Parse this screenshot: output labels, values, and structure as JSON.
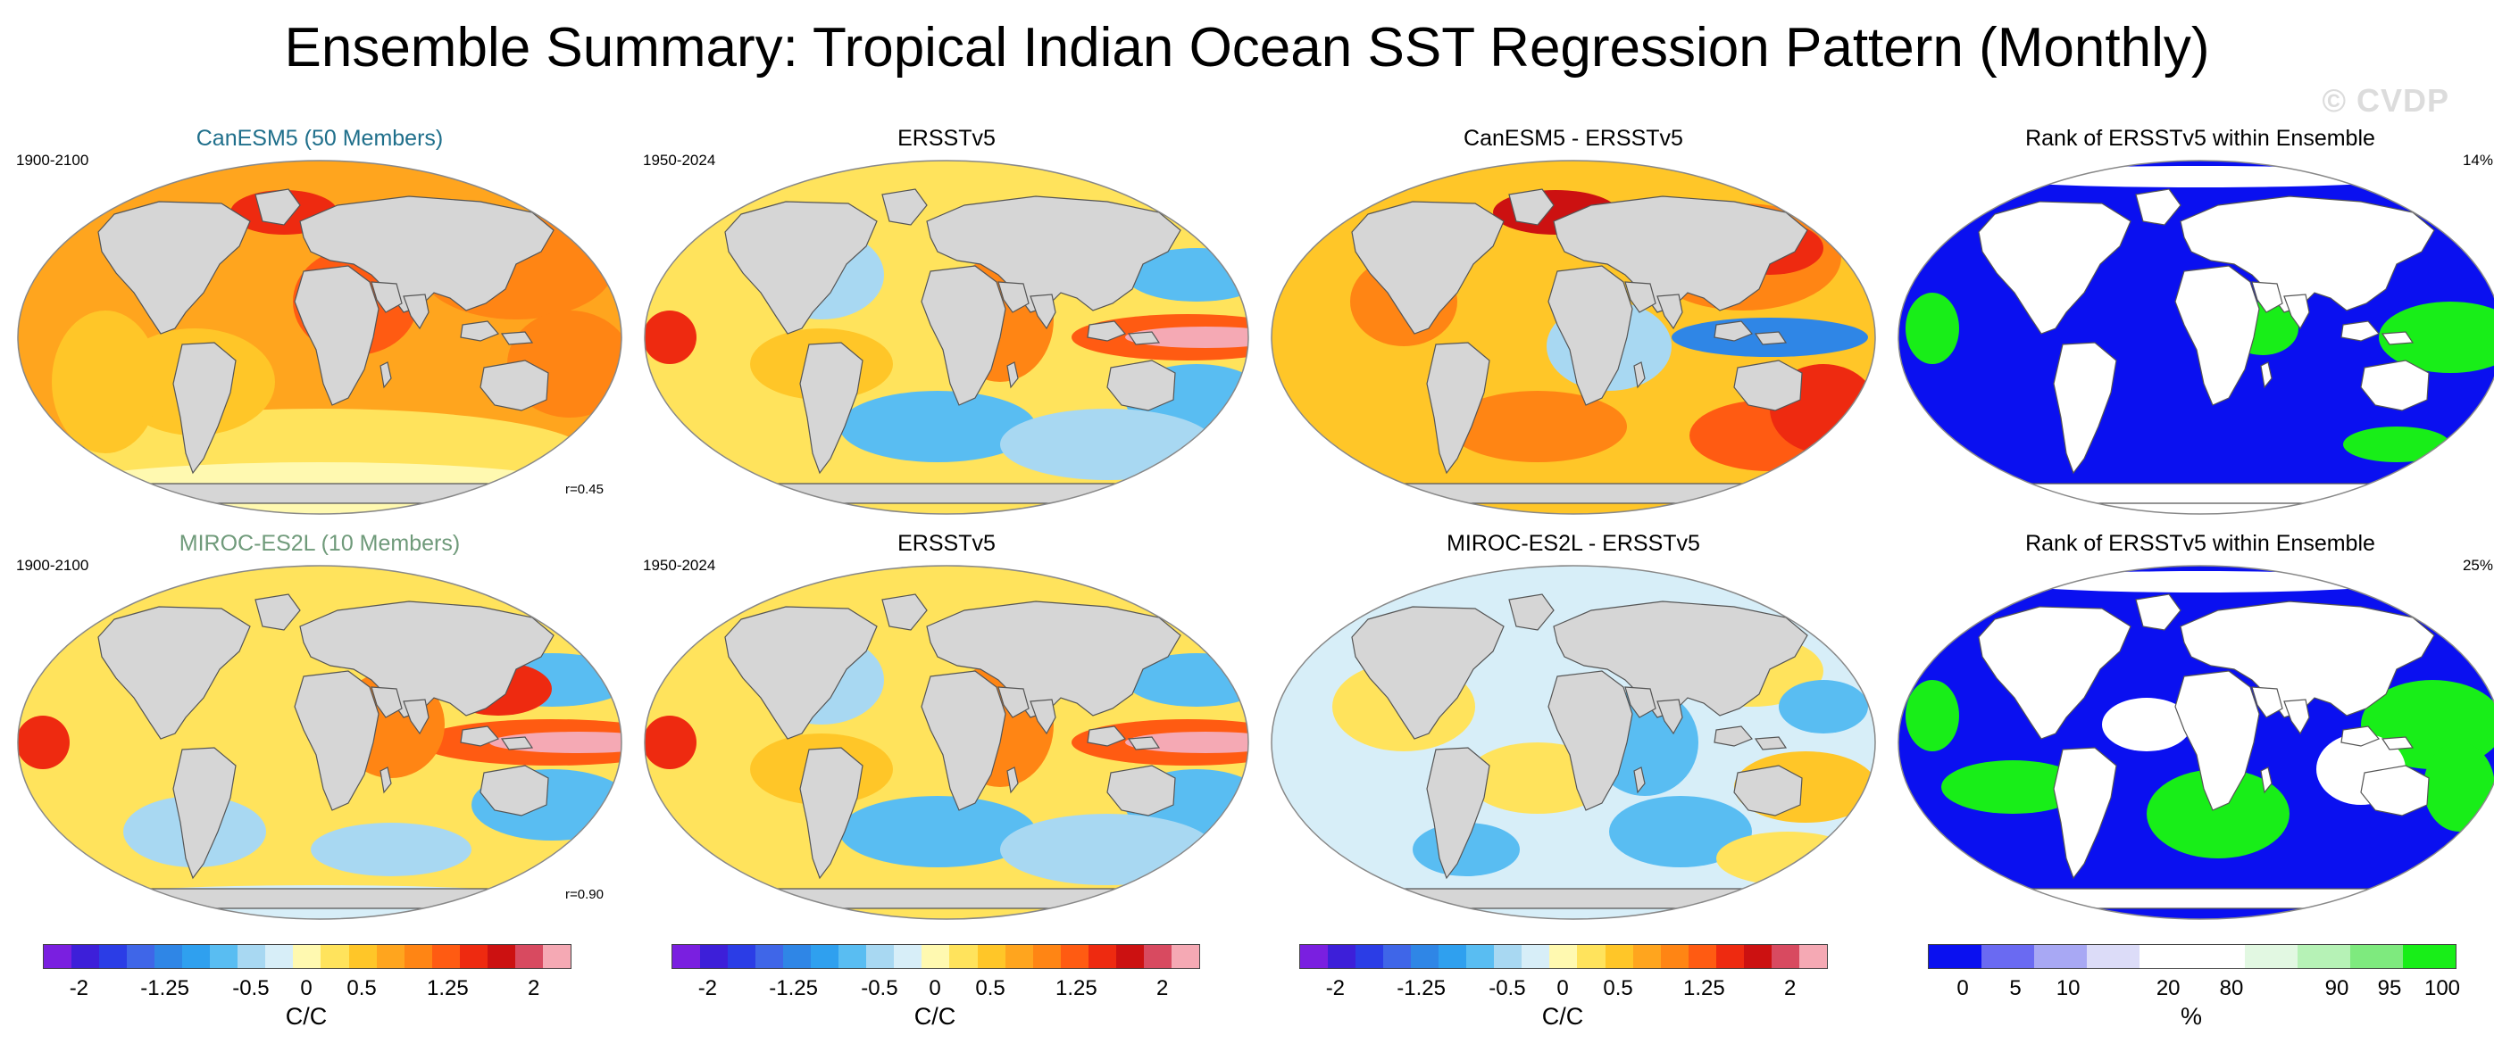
{
  "title": "Ensemble Summary: Tropical Indian Ocean SST Regression Pattern (Monthly)",
  "watermark": "© CVDP",
  "colors": {
    "land": "#d6d6d6",
    "coast": "#555555",
    "title_canesm": "#1f6f8b",
    "title_miroc": "#6f9a7a"
  },
  "rows": [
    {
      "panels": [
        {
          "title": "CanESM5 (50 Members)",
          "years": "1900-2100",
          "corr": "r=0.45",
          "kind": "model-warm",
          "title_color": "#1f6f8b"
        },
        {
          "title": "ERSSTv5",
          "years": "1950-2024",
          "kind": "obs"
        },
        {
          "title": "CanESM5 - ERSSTv5",
          "kind": "diff-warm"
        },
        {
          "title": "Rank of ERSSTv5 within Ensemble",
          "pct": "14%",
          "kind": "rank-blue"
        }
      ]
    },
    {
      "panels": [
        {
          "title": "MIROC-ES2L (10 Members)",
          "years": "1900-2100",
          "corr": "r=0.90",
          "kind": "model-enso",
          "title_color": "#6f9a7a"
        },
        {
          "title": "ERSSTv5",
          "years": "1950-2024",
          "kind": "obs"
        },
        {
          "title": "MIROC-ES2L - ERSSTv5",
          "kind": "diff-mixed"
        },
        {
          "title": "Rank of ERSSTv5 within Ensemble",
          "pct": "25%",
          "kind": "rank-green"
        }
      ]
    }
  ],
  "colorbars": [
    {
      "unit": "C/C",
      "colors": [
        "#7a1fe0",
        "#3d1fd9",
        "#2b3de6",
        "#3f66e8",
        "#2f86e6",
        "#2fa0ef",
        "#59bdf2",
        "#a8d8f2",
        "#d7eef8",
        "#fff9b0",
        "#ffe35c",
        "#ffc628",
        "#ffa51e",
        "#ff8514",
        "#ff5b12",
        "#ee2a10",
        "#cc1111",
        "#d84a60",
        "#f5a9b4"
      ],
      "ticks": [
        "-2",
        "-1.25",
        "-0.5",
        "0",
        "0.5",
        "1.25",
        "2"
      ]
    },
    {
      "unit": "C/C",
      "colors": [
        "#7a1fe0",
        "#3d1fd9",
        "#2b3de6",
        "#3f66e8",
        "#2f86e6",
        "#2fa0ef",
        "#59bdf2",
        "#a8d8f2",
        "#d7eef8",
        "#fff9b0",
        "#ffe35c",
        "#ffc628",
        "#ffa51e",
        "#ff8514",
        "#ff5b12",
        "#ee2a10",
        "#cc1111",
        "#d84a60",
        "#f5a9b4"
      ],
      "ticks": [
        "-2",
        "-1.25",
        "-0.5",
        "0",
        "0.5",
        "1.25",
        "2"
      ]
    },
    {
      "unit": "C/C",
      "colors": [
        "#7a1fe0",
        "#3d1fd9",
        "#2b3de6",
        "#3f66e8",
        "#2f86e6",
        "#2fa0ef",
        "#59bdf2",
        "#a8d8f2",
        "#d7eef8",
        "#fff9b0",
        "#ffe35c",
        "#ffc628",
        "#ffa51e",
        "#ff8514",
        "#ff5b12",
        "#ee2a10",
        "#cc1111",
        "#d84a60",
        "#f5a9b4"
      ],
      "ticks": [
        "-2",
        "-1.25",
        "-0.5",
        "0",
        "0.5",
        "1.25",
        "2"
      ]
    },
    {
      "unit": "%",
      "colors": [
        "#0a10f0",
        "#6a6af2",
        "#a8a8f4",
        "#dcdcf8",
        "#ffffff",
        "#ffffff",
        "#e2f8e2",
        "#b6f2b6",
        "#7eea7e",
        "#18ee18"
      ],
      "ticks": [
        "0",
        "5",
        "10",
        "20",
        "80",
        "90",
        "95",
        "100"
      ]
    }
  ]
}
